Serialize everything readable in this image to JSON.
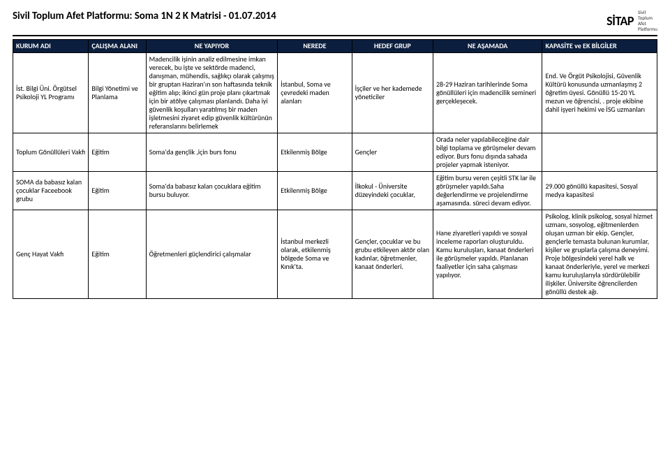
{
  "header": {
    "title": "Sivil Toplum Afet Platformu: Soma 1N 2 K Matrisi - 01.07.2014",
    "logo_main": "SİTAP",
    "logo_sub_l1": "Sivil",
    "logo_sub_l2": "Toplum",
    "logo_sub_l3": "Afet",
    "logo_sub_l4": "Platformu"
  },
  "columns": [
    "KURUM ADI",
    "ÇALIŞMA ALANI",
    "NE YAPIYOR",
    "NEREDE",
    "HEDEF GRUP",
    "NE AŞAMADA",
    "KAPASİTE ve EK BİLGİLER"
  ],
  "rows": [
    {
      "org": "İst. Bilgi Üni. Örgütsel Psikoloji YL Programı",
      "area": "Bilgi Yönetimi ve Planlama",
      "what": "Madencilik işinin analiz edilmesine imkan verecek, bu işte ve sektörde madenci, danışman, mühendis, sağlıkçı olarak çalışmış bir gruptan Haziran'ın son haftasında teknik eğitim alıp;  ikinci gün proje planı çıkartmak için bir atölye çalışması planlandı. Daha iyi güvenlik koşulları yaratılmış bir maden işletmesini ziyaret edip güvenlik kültürünün referanslarını belirlemek",
      "where": "İstanbul, Soma ve çevredeki maden alanları",
      "target": "İşçiler ve her kademede yöneticiler",
      "stage": "28-29 Haziran tarihlerinde Soma gönüllüleri için madencilik semineri gerçekleşecek.",
      "capacity": "End. Ve Örgüt Psikolojisi, Güvenlik Kültürü konusunda uzmanlaşmış 2 öğretim üyesi. Gönüllü 15-20 YL mezun ve öğrencisi, . proje ekibine dahil işyeri hekimi ve İSG uzmanları"
    },
    {
      "org": "Toplum Gönüllüleri Vakfı",
      "area": "Eğitim",
      "what": "Soma'da gençlik ,için burs fonu",
      "where": "Etkilenmiş Bölge",
      "target": "Gençler",
      "stage": "Orada neler yapılabileceğine dair bilgi toplama ve görüşmeler devam ediyor. Burs fonu dışında sahada projeler yapmak isteniyor.",
      "capacity": ""
    },
    {
      "org": "SOMA da babasız kalan çocuklar Faceebook grubu",
      "area": "Eğitim",
      "what": "Soma'da babasız kalan çocuklara eğitim bursu buluyor.",
      "where": "Etkilenmiş Bölge",
      "target": "İlkokul - Üniversite düzeyindeki çocuklar,",
      "stage": "Eğitim bursu veren çeşitli STK lar ile görüşmeler yapıldı.Saha değerlendirme ve projelendirme aşamasında. süreci devam ediyor.",
      "capacity": "29.000 gönüllü kapasitesi, Sosyal medya kapasitesi"
    },
    {
      "org": "Genç Hayat Vakfı",
      "area": "Eğitim",
      "what": "Öğretmenleri güçlendirici çalışmalar",
      "where": "İstanbul merkezli olarak, etkilenmiş bölgede Soma ve Kınık'ta.",
      "target": "Gençler, çocuklar ve bu grubu etkileyen aktör olan kadınlar, öğretmenler, kanaat önderleri.",
      "stage": "Hane ziyaretleri yapıldı ve sosyal inceleme raporları oluşturuldu. Kamu kuruluşları, kanaat önderleri ile görüşmeler yapıldı.  Planlanan faaliyetler için saha çalışması yapılıyor.",
      "capacity": "Psikolog, klinik psikolog, sosyal hizmet uzmanı, sosyolog, eğitmenlerden oluşan uzman bir ekip. Gençler, gençlerle temasta bulunan kurumlar, kişiler ve gruplarla çalışma deneyimi. Proje bölgesindeki yerel halk ve kanaat önderleriyle, yerel ve merkezi kamu kuruluşlarıyla sürdürülebilir ilişkiler. Üniversite öğrencilerden gönüllü destek ağı."
    }
  ]
}
